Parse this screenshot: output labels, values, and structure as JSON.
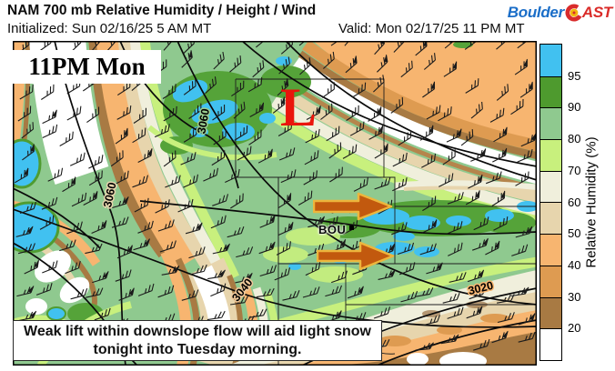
{
  "header": {
    "title": "NAM 700 mb Relative Humidity / Height / Wind",
    "initialized": "Initialized: Sun 02/16/25 5 AM MT",
    "valid": "Valid: Mon 02/17/25 11 PM MT"
  },
  "logo": {
    "part1": "Boulder",
    "part2": "AST"
  },
  "map": {
    "timestamp_label": "11PM Mon",
    "low_marker": "L",
    "station_label": "BOU",
    "annotation": "Weak lift within downslope flow will aid light snow tonight into Tuesday morning.",
    "contour_labels": [
      "3060",
      "3060",
      "3040",
      "3020"
    ]
  },
  "colorbar": {
    "title": "Relative Humidity (%)",
    "boundary_labels": [
      "95",
      "90",
      "80",
      "70",
      "60",
      "50",
      "40",
      "30",
      "20"
    ],
    "segment_colors": [
      "#41C1F0",
      "#4E9A2E",
      "#8FC98F",
      "#C8F07D",
      "#F0EFDC",
      "#E7D5AD",
      "#F7B570",
      "#DE9B51",
      "#A87A43",
      "#FFFFFF"
    ]
  },
  "accent_colors": {
    "arrow_fill": "#C2590E",
    "arrow_outline": "#EDB53C",
    "low_red": "#EA150C"
  }
}
